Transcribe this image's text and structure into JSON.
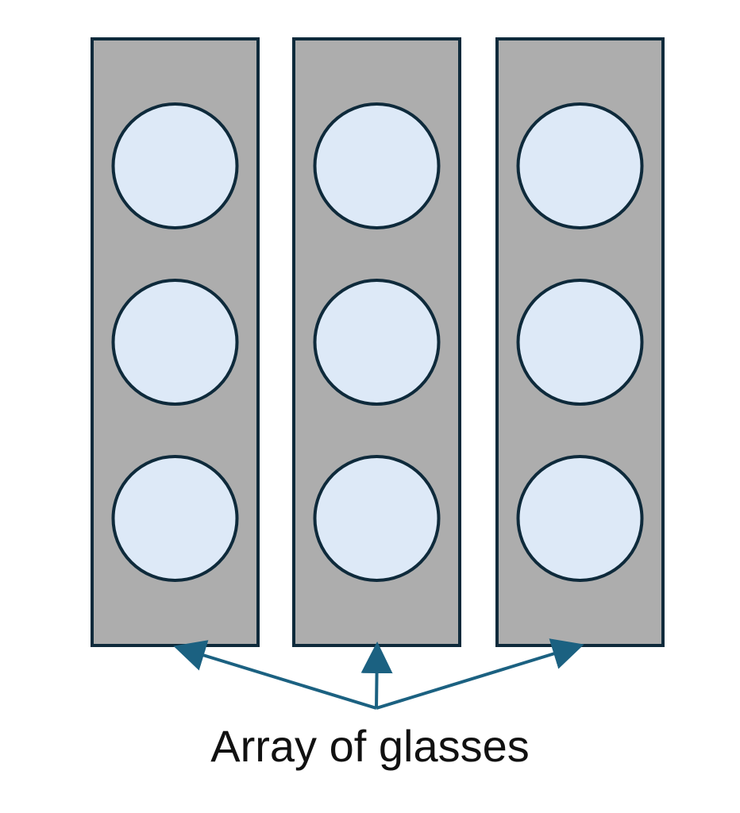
{
  "caption": "Array of glasses",
  "layout": {
    "columns": 3,
    "glasses_per_column": 3
  },
  "colors": {
    "panel_fill": "#adadad",
    "panel_stroke": "#0e2a3b",
    "glass_fill": "#dde9f7",
    "glass_stroke": "#0e2a3b",
    "arrow": "#1b6181",
    "text": "#111111"
  }
}
